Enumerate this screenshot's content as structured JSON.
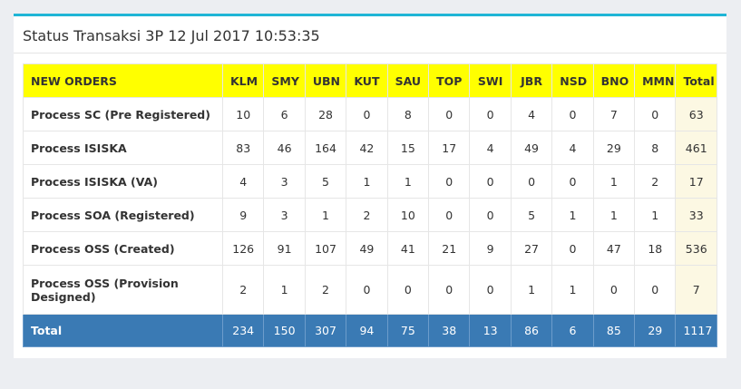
{
  "panel": {
    "title": "Status Transaksi 3P 12 Jul 2017 10:53:35"
  },
  "table": {
    "header_label": "NEW ORDERS",
    "columns": [
      "KLM",
      "SMY",
      "UBN",
      "KUT",
      "SAU",
      "TOP",
      "SWI",
      "JBR",
      "NSD",
      "BNO",
      "MMN",
      "Total"
    ],
    "rows": [
      {
        "label": "Process SC (Pre Registered)",
        "values": [
          "10",
          "6",
          "28",
          "0",
          "8",
          "0",
          "0",
          "4",
          "0",
          "7",
          "0",
          "63"
        ]
      },
      {
        "label": "Process ISISKA",
        "values": [
          "83",
          "46",
          "164",
          "42",
          "15",
          "17",
          "4",
          "49",
          "4",
          "29",
          "8",
          "461"
        ]
      },
      {
        "label": "Process ISISKA (VA)",
        "values": [
          "4",
          "3",
          "5",
          "1",
          "1",
          "0",
          "0",
          "0",
          "0",
          "1",
          "2",
          "17"
        ]
      },
      {
        "label": "Process SOA (Registered)",
        "values": [
          "9",
          "3",
          "1",
          "2",
          "10",
          "0",
          "0",
          "5",
          "1",
          "1",
          "1",
          "33"
        ]
      },
      {
        "label": "Process OSS (Created)",
        "values": [
          "126",
          "91",
          "107",
          "49",
          "41",
          "21",
          "9",
          "27",
          "0",
          "47",
          "18",
          "536"
        ]
      },
      {
        "label": "Process OSS (Provision Designed)",
        "values": [
          "2",
          "1",
          "2",
          "0",
          "0",
          "0",
          "0",
          "1",
          "1",
          "0",
          "0",
          "7"
        ]
      }
    ],
    "footer": {
      "label": "Total",
      "values": [
        "234",
        "150",
        "307",
        "94",
        "75",
        "38",
        "13",
        "86",
        "6",
        "85",
        "29",
        "1117"
      ]
    }
  },
  "colors": {
    "accent_top_border": "#1fb5d6",
    "header_bg": "#ffff00",
    "footer_bg": "#3a7ab4",
    "total_col_bg": "#fcf8e3"
  }
}
